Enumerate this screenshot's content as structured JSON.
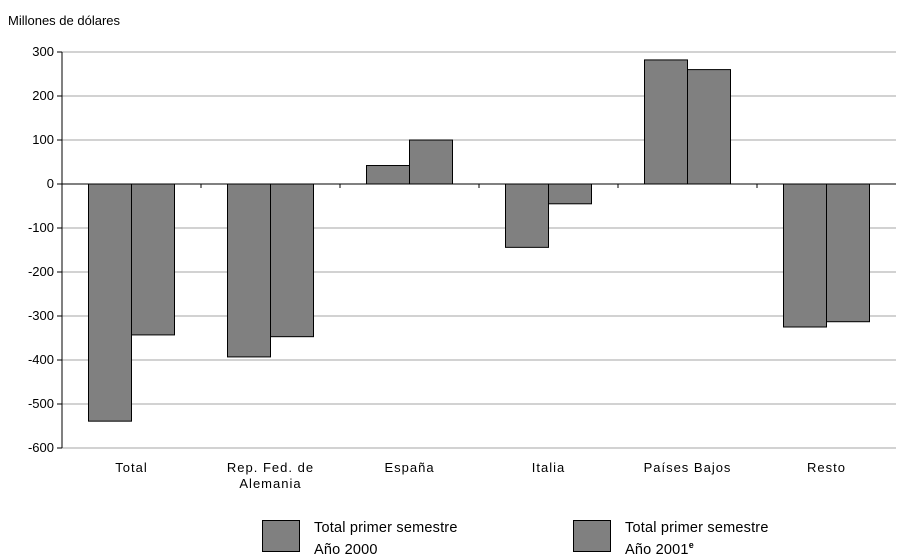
{
  "chart_data": {
    "type": "bar",
    "ylabel": "Millones de dólares",
    "ylim": [
      -600,
      300
    ],
    "yticks": [
      300,
      200,
      100,
      0,
      -100,
      -200,
      -300,
      -400,
      -500,
      -600
    ],
    "grid": true,
    "categories": [
      "Total",
      "Rep. Fed. de Alemania",
      "España",
      "Italia",
      "Países Bajos",
      "Resto"
    ],
    "category_lines": [
      [
        "Total"
      ],
      [
        "Rep. Fed. de",
        "Alemania"
      ],
      [
        "España"
      ],
      [
        "Italia"
      ],
      [
        "Países Bajos"
      ],
      [
        "Resto"
      ]
    ],
    "series": [
      {
        "name": "Total primer semestre Año 2000",
        "values": [
          -539,
          -393,
          42,
          -144,
          282,
          -325
        ]
      },
      {
        "name": "Total primer semestre Año 2001e",
        "values": [
          -343,
          -347,
          100,
          -45,
          260,
          -313
        ]
      }
    ],
    "bar_color": "#808080",
    "legend_position": "bottom"
  },
  "legend": [
    {
      "line1": "Total primer semestre",
      "line2": "Año 2000",
      "sup": ""
    },
    {
      "line1": "Total primer semestre",
      "line2": "Año 2001",
      "sup": "e"
    }
  ]
}
